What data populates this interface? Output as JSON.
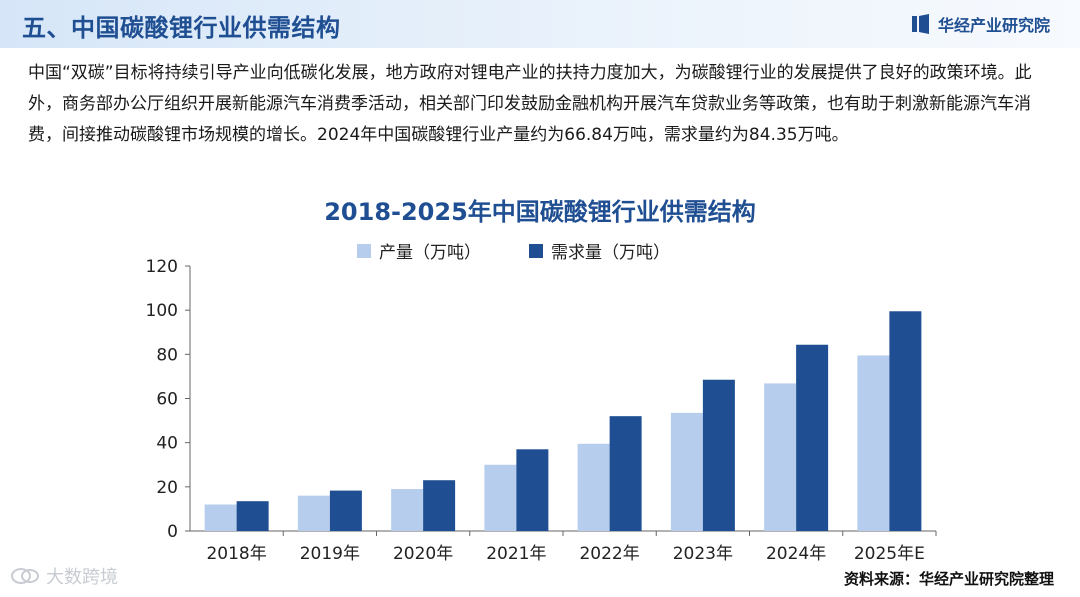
{
  "page": {
    "title": "五、中国碳酸锂行业供需结构",
    "brand": "华经产业研究院",
    "intro": "中国“双碳”目标将持续引导产业向低碳化发展，地方政府对锂电产业的扶持力度加大，为碳酸锂行业的发展提供了良好的政策环境。此外，商务部办公厅组织开展新能源汽车消费季活动，相关部门印发鼓励金融机构开展汽车贷款业务等政策，也有助于刺激新能源汽车消费，间接推动碳酸锂市场规模的增长。2024年中国碳酸锂行业产量约为66.84万吨，需求量约为84.35万吨。",
    "source": "资料来源：华经产业研究院整理",
    "corner_mark": "大数跨境"
  },
  "colors": {
    "production": "#b7cdee",
    "demand": "#1f4f92",
    "title": "#1f4f92"
  },
  "chart_data": {
    "type": "bar",
    "title": "2018-2025年中国碳酸锂行业供需结构",
    "categories": [
      "2018年",
      "2019年",
      "2020年",
      "2021年",
      "2022年",
      "2023年",
      "2024年",
      "2025年E"
    ],
    "series": [
      {
        "name": "产量（万吨）",
        "values": [
          12,
          16,
          19,
          30,
          39.5,
          53.5,
          66.84,
          79.5
        ]
      },
      {
        "name": "需求量（万吨）",
        "values": [
          13.5,
          18.3,
          23,
          37,
          52,
          68.5,
          84.35,
          99.5
        ]
      }
    ],
    "ylim": [
      0,
      120
    ],
    "yticks": [
      0,
      20,
      40,
      60,
      80,
      100,
      120
    ],
    "legend": "top",
    "grid": false
  }
}
